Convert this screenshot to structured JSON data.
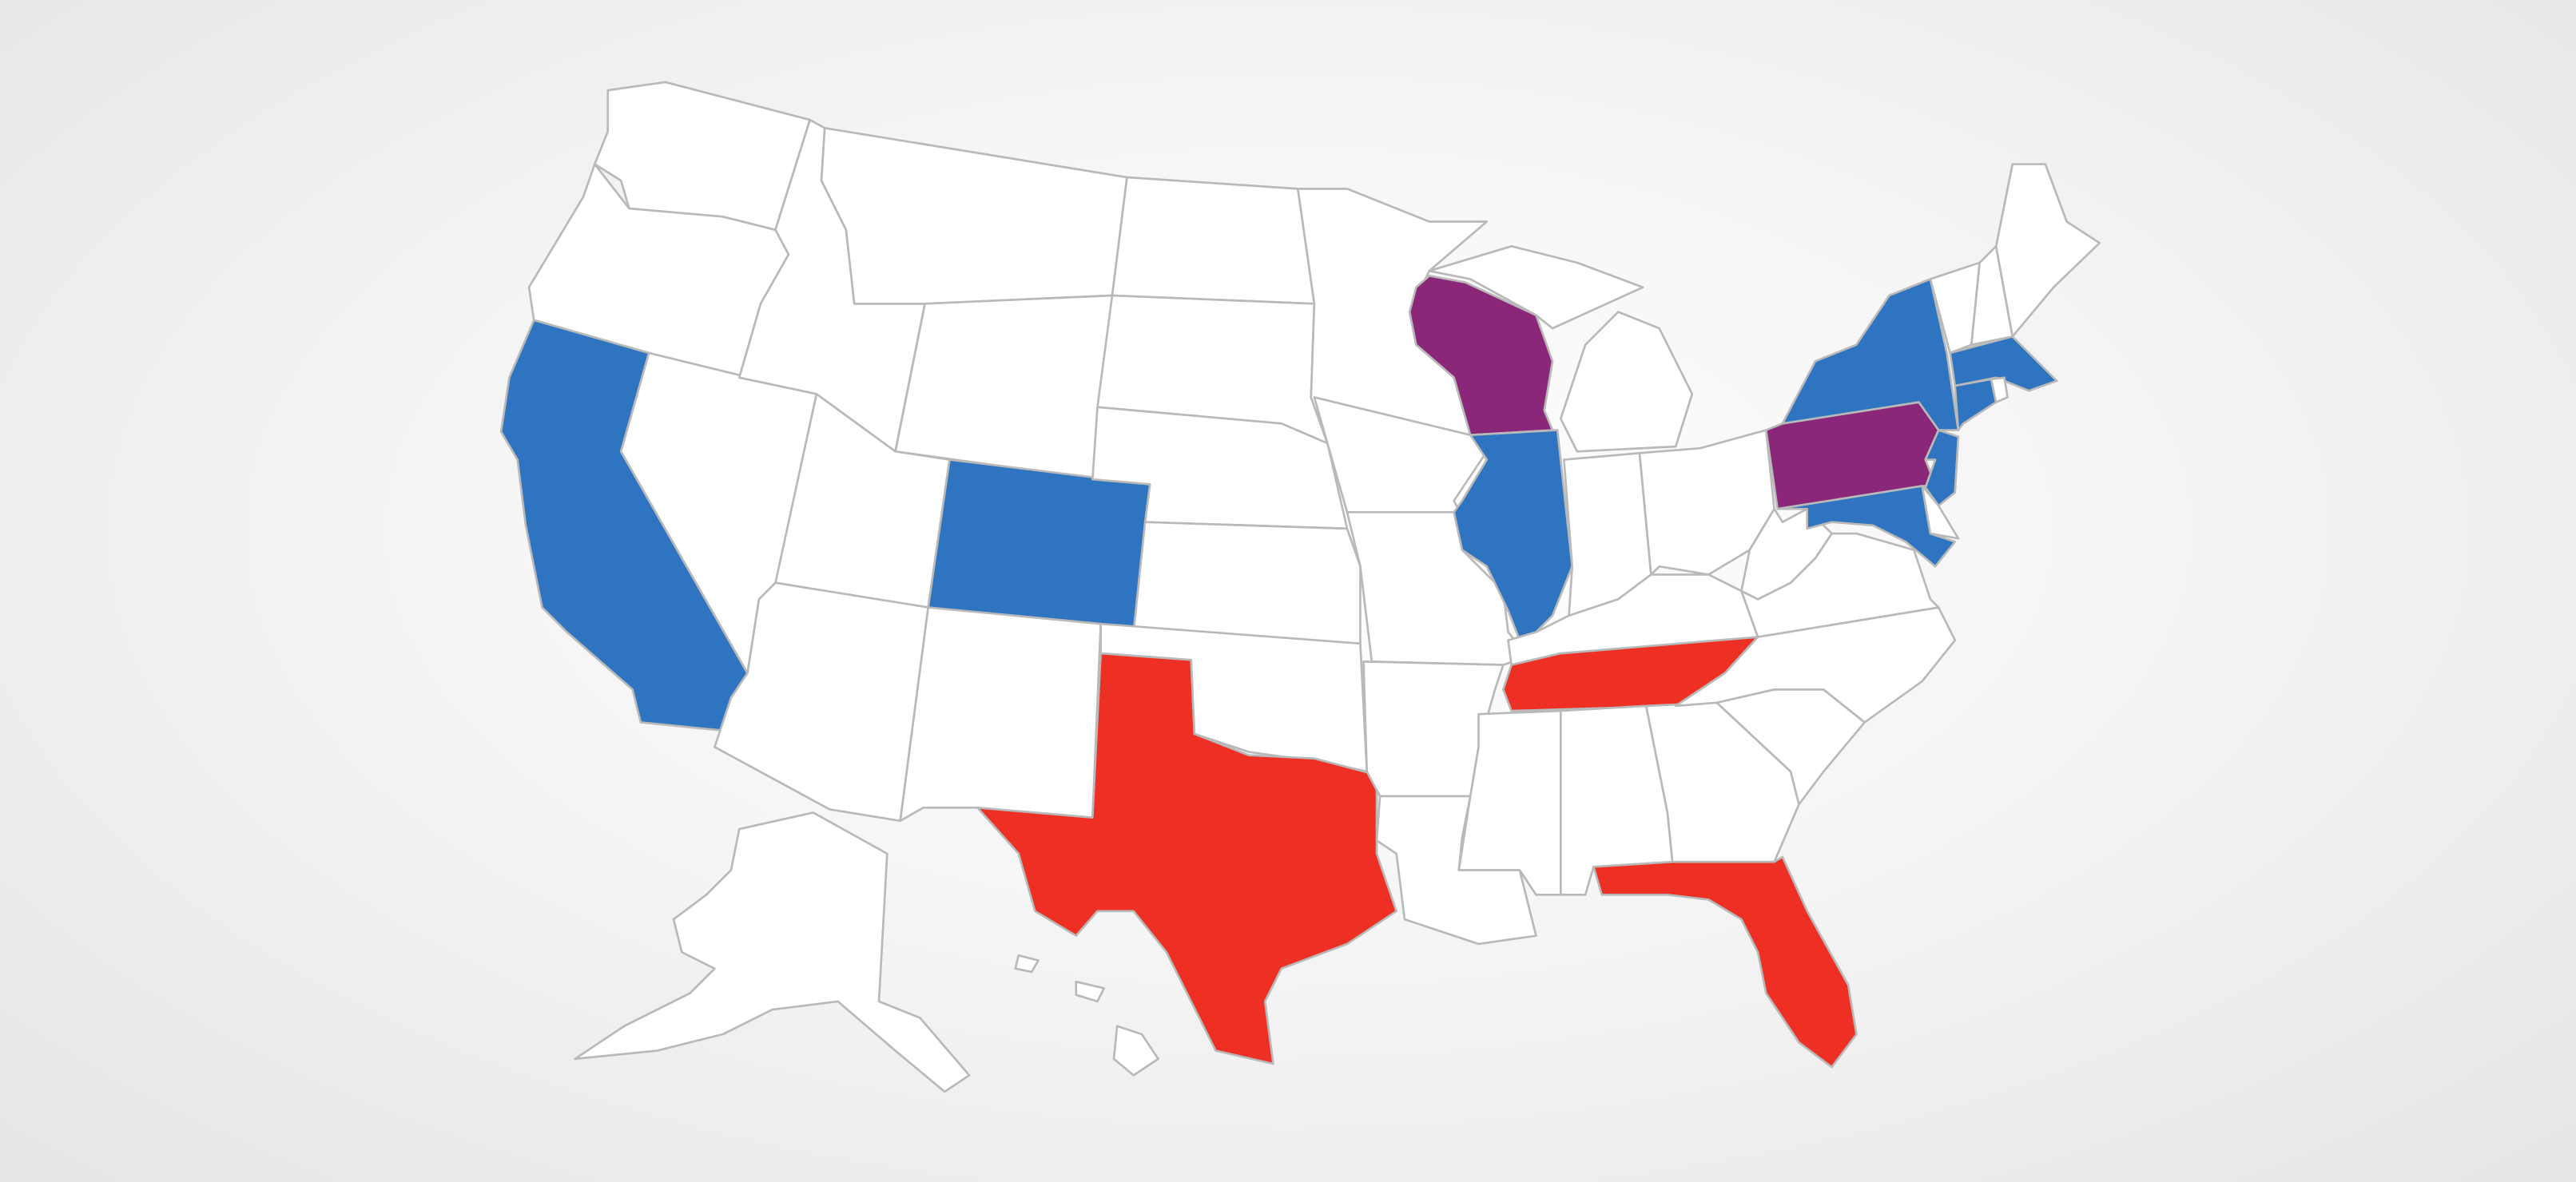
{
  "map": {
    "colors": {
      "default": "#ffffff",
      "border": "#b9b9b9",
      "blue": "#2F74C0",
      "red": "#EE3024",
      "purple": "#8B2779"
    },
    "highlighted_states": {
      "blue": [
        "CA",
        "CO",
        "IL",
        "NY",
        "MA",
        "CT",
        "NJ",
        "MD"
      ],
      "red": [
        "TX",
        "TN",
        "FL"
      ],
      "purple": [
        "WI",
        "PA"
      ]
    }
  }
}
